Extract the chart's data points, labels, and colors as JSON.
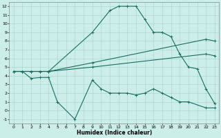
{
  "xlabel": "Humidex (Indice chaleur)",
  "background_color": "#cceee8",
  "line_color": "#1a6b60",
  "grid_color": "#aad8d0",
  "xlim": [
    -0.5,
    23.5
  ],
  "ylim": [
    -1.5,
    12.5
  ],
  "xticks": [
    0,
    1,
    2,
    3,
    4,
    5,
    6,
    7,
    8,
    9,
    10,
    11,
    12,
    13,
    14,
    15,
    16,
    17,
    18,
    19,
    20,
    21,
    22,
    23
  ],
  "yticks": [
    -1,
    0,
    1,
    2,
    3,
    4,
    5,
    6,
    7,
    8,
    9,
    10,
    11,
    12
  ],
  "lines": [
    {
      "x": [
        0,
        1,
        2,
        3,
        4,
        5,
        7,
        9,
        10,
        11,
        12,
        13,
        14,
        15,
        16,
        17,
        18,
        19,
        20,
        22,
        23
      ],
      "y": [
        4.5,
        4.5,
        3.7,
        3.8,
        3.8,
        1.0,
        -1.0,
        3.5,
        2.5,
        2.0,
        2.0,
        2.0,
        1.8,
        2.0,
        2.5,
        2.0,
        1.5,
        1.0,
        1.0,
        0.3,
        0.3
      ]
    },
    {
      "x": [
        0,
        1,
        2,
        3,
        4,
        9,
        11,
        12,
        13,
        14,
        15,
        16,
        17,
        18,
        19,
        20,
        21,
        22,
        23
      ],
      "y": [
        4.5,
        4.5,
        4.5,
        4.5,
        4.5,
        9.0,
        11.5,
        12.0,
        12.0,
        12.0,
        10.5,
        9.0,
        9.0,
        8.5,
        6.5,
        5.0,
        4.8,
        2.5,
        0.8
      ]
    },
    {
      "x": [
        0,
        1,
        2,
        3,
        4,
        9,
        22,
        23
      ],
      "y": [
        4.5,
        4.5,
        4.5,
        4.5,
        4.5,
        5.5,
        8.2,
        8.0
      ]
    },
    {
      "x": [
        0,
        1,
        2,
        3,
        4,
        9,
        22,
        23
      ],
      "y": [
        4.5,
        4.5,
        4.5,
        4.5,
        4.5,
        5.0,
        6.5,
        6.3
      ]
    }
  ]
}
